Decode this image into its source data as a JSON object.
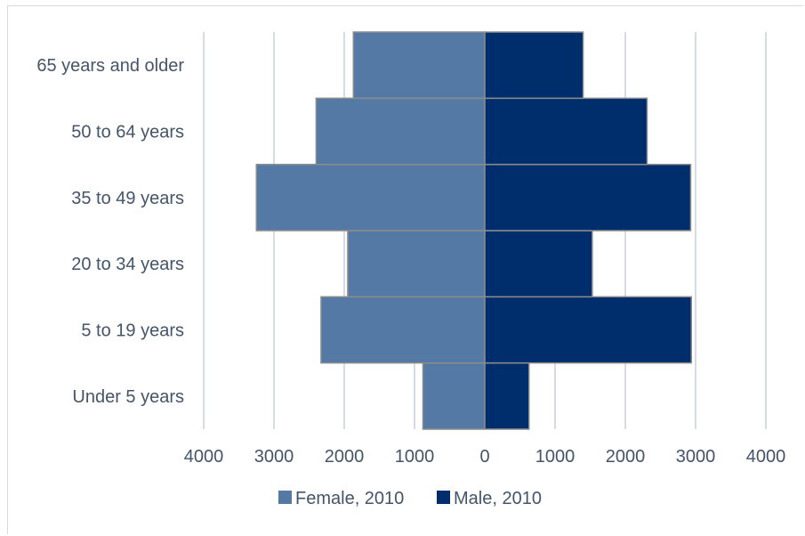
{
  "chart_data": {
    "type": "bar",
    "orientation": "horizontal",
    "style": "population-pyramid",
    "categories": [
      "Under 5 years",
      "5 to 19 years",
      "20 to 34 years",
      "35 to 49 years",
      "50 to 64 years",
      "65 years and older"
    ],
    "series": [
      {
        "name": "Female, 2010",
        "side": "left",
        "color": "#5479a5",
        "values": [
          880,
          2330,
          1950,
          3250,
          2400,
          1870
        ]
      },
      {
        "name": "Male, 2010",
        "side": "right",
        "color": "#002d6b",
        "values": [
          630,
          2940,
          1530,
          2930,
          2310,
          1400
        ]
      }
    ],
    "xticks": [
      "4000",
      "3000",
      "2000",
      "1000",
      "0",
      "1000",
      "2000",
      "3000",
      "4000"
    ],
    "xlim": [
      -4000,
      4000
    ],
    "grid": "vertical",
    "legend": "bottom",
    "title": "",
    "xlabel": "",
    "ylabel": ""
  }
}
